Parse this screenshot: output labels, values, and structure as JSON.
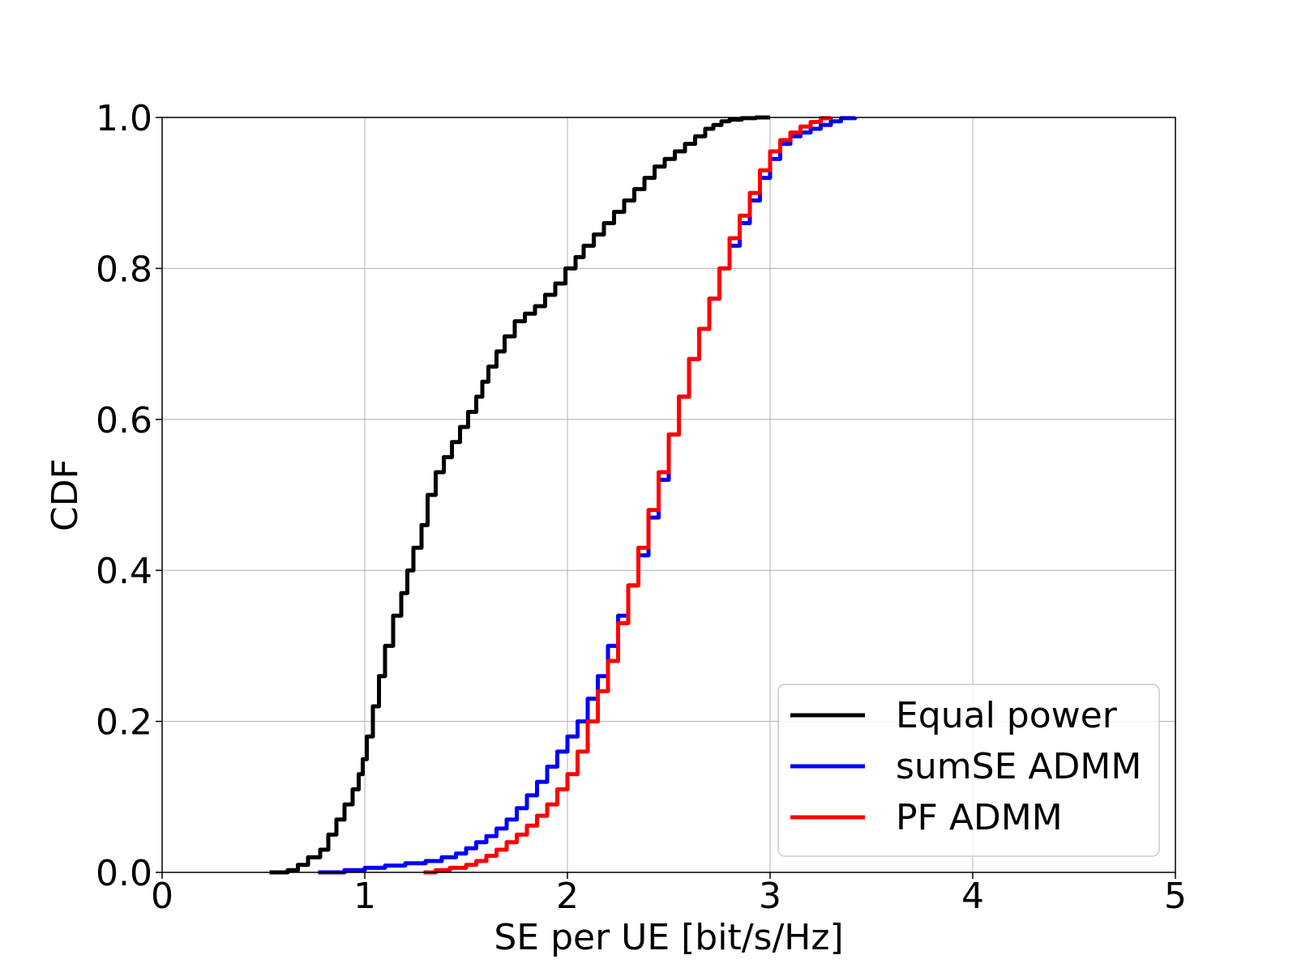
{
  "chart_data": {
    "type": "line",
    "title": "",
    "xlabel": "SE per UE [bit/s/Hz]",
    "ylabel": "CDF",
    "xlim": [
      0,
      5
    ],
    "ylim": [
      0,
      1
    ],
    "xticks": [
      0,
      1,
      2,
      3,
      4,
      5
    ],
    "yticks": [
      0.0,
      0.2,
      0.4,
      0.6,
      0.8,
      1.0
    ],
    "xtick_labels": [
      "0",
      "1",
      "2",
      "3",
      "4",
      "5"
    ],
    "ytick_labels": [
      "0.0",
      "0.2",
      "0.4",
      "0.6",
      "0.8",
      "1.0"
    ],
    "grid": true,
    "legend": {
      "position": "bottom-right"
    },
    "series": [
      {
        "name": "Equal power",
        "color": "#000000",
        "x": [
          0.53,
          0.62,
          0.67,
          0.72,
          0.78,
          0.82,
          0.86,
          0.9,
          0.94,
          0.97,
          0.99,
          1.01,
          1.04,
          1.07,
          1.1,
          1.14,
          1.18,
          1.21,
          1.24,
          1.28,
          1.31,
          1.35,
          1.39,
          1.43,
          1.47,
          1.51,
          1.55,
          1.58,
          1.61,
          1.65,
          1.69,
          1.74,
          1.79,
          1.84,
          1.89,
          1.94,
          1.99,
          2.04,
          2.08,
          2.13,
          2.18,
          2.23,
          2.28,
          2.33,
          2.38,
          2.43,
          2.48,
          2.53,
          2.58,
          2.63,
          2.68,
          2.72,
          2.76,
          2.8,
          2.86,
          2.93,
          3.0
        ],
        "y": [
          0.0,
          0.003,
          0.01,
          0.02,
          0.03,
          0.05,
          0.07,
          0.09,
          0.11,
          0.13,
          0.15,
          0.18,
          0.22,
          0.26,
          0.3,
          0.34,
          0.37,
          0.4,
          0.43,
          0.46,
          0.5,
          0.53,
          0.55,
          0.57,
          0.59,
          0.61,
          0.63,
          0.65,
          0.67,
          0.69,
          0.71,
          0.73,
          0.74,
          0.75,
          0.765,
          0.78,
          0.8,
          0.815,
          0.83,
          0.845,
          0.86,
          0.875,
          0.89,
          0.905,
          0.92,
          0.935,
          0.945,
          0.955,
          0.965,
          0.975,
          0.985,
          0.99,
          0.995,
          0.997,
          0.999,
          1.0,
          1.0
        ]
      },
      {
        "name": "sumSE ADMM",
        "color": "#0000ff",
        "x": [
          0.77,
          0.9,
          1.0,
          1.1,
          1.2,
          1.3,
          1.38,
          1.45,
          1.5,
          1.55,
          1.6,
          1.65,
          1.7,
          1.75,
          1.8,
          1.85,
          1.9,
          1.95,
          2.0,
          2.05,
          2.1,
          2.15,
          2.2,
          2.25,
          2.3,
          2.35,
          2.4,
          2.45,
          2.5,
          2.55,
          2.6,
          2.65,
          2.7,
          2.75,
          2.8,
          2.85,
          2.9,
          2.95,
          3.0,
          3.05,
          3.1,
          3.15,
          3.2,
          3.25,
          3.3,
          3.35,
          3.42
        ],
        "y": [
          0.0,
          0.003,
          0.006,
          0.009,
          0.012,
          0.015,
          0.02,
          0.025,
          0.032,
          0.04,
          0.048,
          0.058,
          0.07,
          0.085,
          0.102,
          0.12,
          0.14,
          0.16,
          0.18,
          0.2,
          0.23,
          0.26,
          0.3,
          0.34,
          0.38,
          0.42,
          0.47,
          0.52,
          0.58,
          0.63,
          0.68,
          0.72,
          0.76,
          0.8,
          0.83,
          0.86,
          0.89,
          0.92,
          0.945,
          0.965,
          0.975,
          0.98,
          0.985,
          0.99,
          0.995,
          0.999,
          1.0
        ]
      },
      {
        "name": "PF ADMM",
        "color": "#ff0000",
        "x": [
          1.29,
          1.35,
          1.42,
          1.5,
          1.55,
          1.6,
          1.65,
          1.7,
          1.75,
          1.8,
          1.85,
          1.9,
          1.95,
          2.0,
          2.05,
          2.1,
          2.15,
          2.2,
          2.25,
          2.3,
          2.35,
          2.4,
          2.45,
          2.5,
          2.55,
          2.6,
          2.65,
          2.7,
          2.75,
          2.8,
          2.85,
          2.9,
          2.95,
          3.0,
          3.05,
          3.1,
          3.15,
          3.2,
          3.25,
          3.3
        ],
        "y": [
          0.0,
          0.003,
          0.006,
          0.01,
          0.015,
          0.022,
          0.03,
          0.04,
          0.05,
          0.062,
          0.075,
          0.09,
          0.11,
          0.13,
          0.16,
          0.2,
          0.24,
          0.28,
          0.33,
          0.38,
          0.43,
          0.48,
          0.53,
          0.58,
          0.63,
          0.68,
          0.72,
          0.76,
          0.8,
          0.84,
          0.87,
          0.9,
          0.93,
          0.955,
          0.97,
          0.98,
          0.988,
          0.994,
          0.999,
          1.0
        ]
      }
    ]
  }
}
